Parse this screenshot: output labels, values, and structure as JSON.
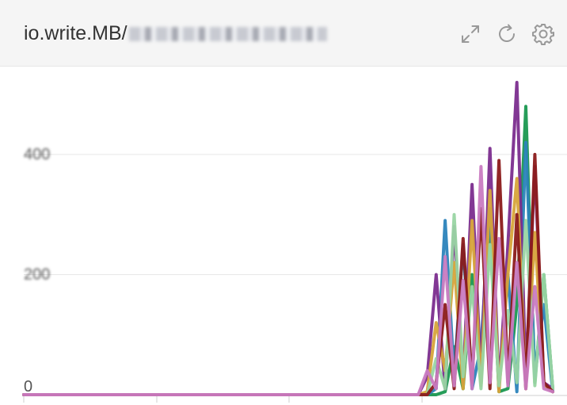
{
  "header": {
    "title_prefix": "io.write.MB/",
    "icons": [
      "expand-icon",
      "refresh-icon",
      "settings-icon"
    ]
  },
  "chart_data": {
    "type": "line",
    "title": "io.write.MB/",
    "xlabel": "",
    "ylabel": "",
    "ylim": [
      0,
      520
    ],
    "yticks": [
      0,
      200,
      400
    ],
    "ytick_labels": [
      "0",
      "200",
      "400"
    ],
    "grid": true,
    "legend": "none",
    "x_points": 60,
    "series": [
      {
        "color": "#1a9850",
        "values": [
          0,
          0,
          0,
          0,
          0,
          0,
          0,
          0,
          0,
          0,
          0,
          0,
          0,
          0,
          0,
          0,
          0,
          0,
          0,
          0,
          0,
          0,
          0,
          0,
          0,
          0,
          0,
          0,
          0,
          0,
          0,
          0,
          0,
          0,
          0,
          0,
          0,
          0,
          0,
          0,
          0,
          0,
          0,
          0,
          0,
          0,
          0,
          5,
          80,
          10,
          200,
          20,
          300,
          5,
          10,
          150,
          480,
          20,
          200,
          10
        ]
      },
      {
        "color": "#2b83ba",
        "values": [
          0,
          0,
          0,
          0,
          0,
          0,
          0,
          0,
          0,
          0,
          0,
          0,
          0,
          0,
          0,
          0,
          0,
          0,
          0,
          0,
          0,
          0,
          0,
          0,
          0,
          0,
          0,
          0,
          0,
          0,
          0,
          0,
          0,
          0,
          0,
          0,
          0,
          0,
          0,
          0,
          0,
          0,
          0,
          0,
          0,
          0,
          10,
          290,
          30,
          250,
          10,
          80,
          310,
          20,
          200,
          5,
          420,
          30,
          150,
          5
        ]
      },
      {
        "color": "#7b2d8e",
        "values": [
          0,
          0,
          0,
          0,
          0,
          0,
          0,
          0,
          0,
          0,
          0,
          0,
          0,
          0,
          0,
          0,
          0,
          0,
          0,
          0,
          0,
          0,
          0,
          0,
          0,
          0,
          0,
          0,
          0,
          0,
          0,
          0,
          0,
          0,
          0,
          0,
          0,
          0,
          0,
          0,
          0,
          0,
          0,
          0,
          0,
          30,
          200,
          10,
          280,
          20,
          350,
          30,
          410,
          10,
          250,
          520,
          30,
          380,
          20,
          10
        ]
      },
      {
        "color": "#d7a43a",
        "values": [
          0,
          0,
          0,
          0,
          0,
          0,
          0,
          0,
          0,
          0,
          0,
          0,
          0,
          0,
          0,
          0,
          0,
          0,
          0,
          0,
          0,
          0,
          0,
          0,
          0,
          0,
          0,
          0,
          0,
          0,
          0,
          0,
          0,
          0,
          0,
          0,
          0,
          0,
          0,
          0,
          0,
          0,
          0,
          0,
          0,
          5,
          120,
          40,
          220,
          10,
          290,
          15,
          340,
          5,
          200,
          360,
          10,
          270,
          15,
          5
        ]
      },
      {
        "color": "#99d5a3",
        "values": [
          0,
          0,
          0,
          0,
          0,
          0,
          0,
          0,
          0,
          0,
          0,
          0,
          0,
          0,
          0,
          0,
          0,
          0,
          0,
          0,
          0,
          0,
          0,
          0,
          0,
          0,
          0,
          0,
          0,
          0,
          0,
          0,
          0,
          0,
          0,
          0,
          0,
          0,
          0,
          0,
          0,
          0,
          0,
          0,
          0,
          0,
          60,
          10,
          300,
          30,
          180,
          10,
          250,
          15,
          140,
          20,
          290,
          15,
          200,
          10
        ]
      },
      {
        "color": "#8b1a1a",
        "values": [
          0,
          0,
          0,
          0,
          0,
          0,
          0,
          0,
          0,
          0,
          0,
          0,
          0,
          0,
          0,
          0,
          0,
          0,
          0,
          0,
          0,
          0,
          0,
          0,
          0,
          0,
          0,
          0,
          0,
          0,
          0,
          0,
          0,
          0,
          0,
          0,
          0,
          0,
          0,
          0,
          0,
          0,
          0,
          0,
          0,
          0,
          20,
          150,
          10,
          260,
          20,
          310,
          10,
          390,
          20,
          300,
          10,
          400,
          20,
          5
        ]
      },
      {
        "color": "#c97bc1",
        "values": [
          0,
          0,
          0,
          0,
          0,
          0,
          0,
          0,
          0,
          0,
          0,
          0,
          0,
          0,
          0,
          0,
          0,
          0,
          0,
          0,
          0,
          0,
          0,
          0,
          0,
          0,
          0,
          0,
          0,
          0,
          0,
          0,
          0,
          0,
          0,
          0,
          0,
          0,
          0,
          0,
          0,
          0,
          0,
          0,
          0,
          40,
          10,
          230,
          15,
          190,
          10,
          380,
          20,
          260,
          15,
          220,
          10,
          180,
          10,
          5
        ]
      }
    ]
  }
}
